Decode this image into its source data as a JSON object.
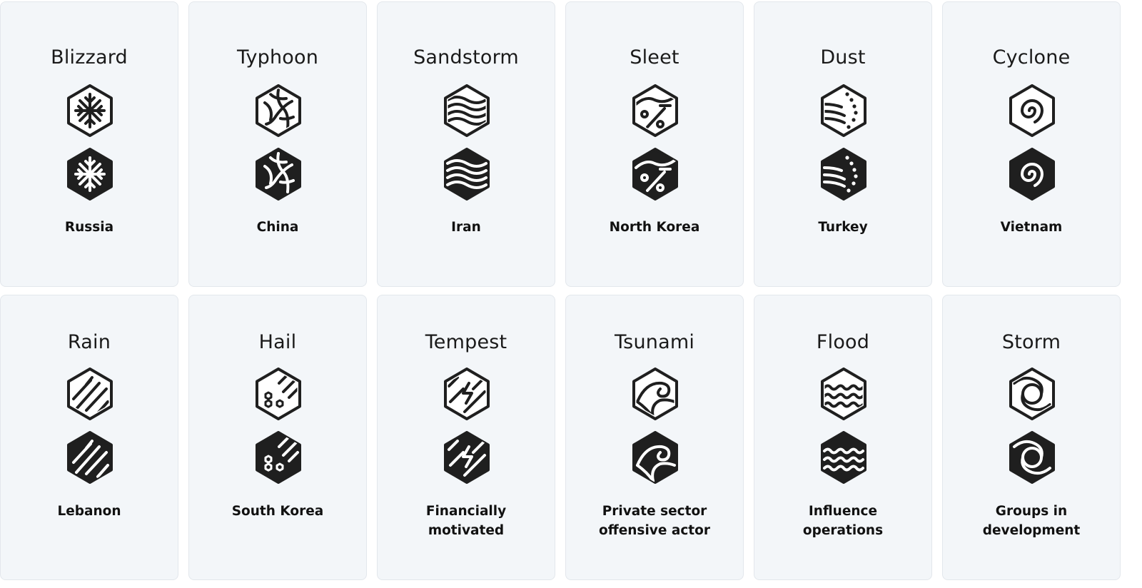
{
  "cards": [
    {
      "name": "Blizzard",
      "label": "Russia",
      "icon_outline": "blizzard-snowflake-outline-icon",
      "icon_filled": "blizzard-snowflake-filled-icon"
    },
    {
      "name": "Typhoon",
      "label": "China",
      "icon_outline": "typhoon-pattern-outline-icon",
      "icon_filled": "typhoon-pattern-filled-icon"
    },
    {
      "name": "Sandstorm",
      "label": "Iran",
      "icon_outline": "sandstorm-waves-outline-icon",
      "icon_filled": "sandstorm-waves-filled-icon"
    },
    {
      "name": "Sleet",
      "label": "North Korea",
      "icon_outline": "sleet-outline-icon",
      "icon_filled": "sleet-filled-icon"
    },
    {
      "name": "Dust",
      "label": "Turkey",
      "icon_outline": "dust-outline-icon",
      "icon_filled": "dust-filled-icon"
    },
    {
      "name": "Cyclone",
      "label": "Vietnam",
      "icon_outline": "cyclone-spiral-outline-icon",
      "icon_filled": "cyclone-spiral-filled-icon"
    },
    {
      "name": "Rain",
      "label": "Lebanon",
      "icon_outline": "rain-streaks-outline-icon",
      "icon_filled": "rain-streaks-filled-icon"
    },
    {
      "name": "Hail",
      "label": "South Korea",
      "icon_outline": "hail-outline-icon",
      "icon_filled": "hail-filled-icon"
    },
    {
      "name": "Tempest",
      "label": "Financially motivated",
      "label_lines": [
        "Financially",
        "motivated"
      ],
      "icon_outline": "tempest-lightning-outline-icon",
      "icon_filled": "tempest-lightning-filled-icon"
    },
    {
      "name": "Tsunami",
      "label": "Private sector offensive actor",
      "label_lines": [
        "Private sector",
        "offensive actor"
      ],
      "icon_outline": "tsunami-wave-outline-icon",
      "icon_filled": "tsunami-wave-filled-icon"
    },
    {
      "name": "Flood",
      "label": "Influence operations",
      "label_lines": [
        "Influence",
        "operations"
      ],
      "icon_outline": "flood-waves-outline-icon",
      "icon_filled": "flood-waves-filled-icon"
    },
    {
      "name": "Storm",
      "label": "Groups in development",
      "label_lines": [
        "Groups in",
        "development"
      ],
      "icon_outline": "storm-ring-outline-icon",
      "icon_filled": "storm-ring-filled-icon"
    }
  ],
  "colors": {
    "card_bg": "#f3f6f9",
    "card_border": "#e3e7ec",
    "icon": "#1f1f1f",
    "text": "#111111"
  }
}
